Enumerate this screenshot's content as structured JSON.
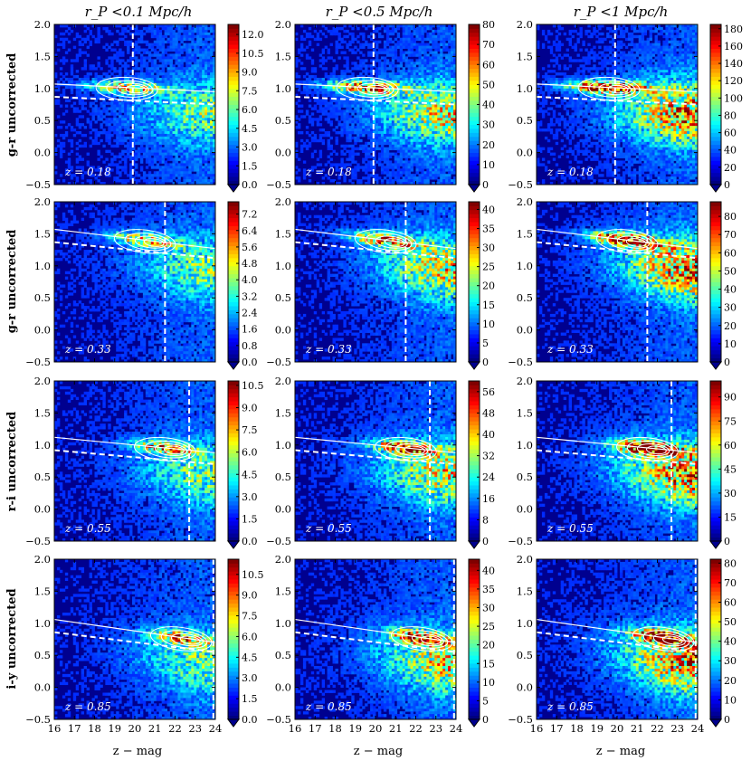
{
  "figure": {
    "column_titles": [
      "r_P <0.1 Mpc/h",
      "r_P <0.5 Mpc/h",
      "r_P <1 Mpc/h"
    ],
    "row_labels": [
      "g-r uncorrected",
      "g-r uncorrected",
      "r-i uncorrected",
      "i-y uncorrected"
    ],
    "xlabel": "z − mag",
    "colors": {
      "low": "#00008f",
      "high": "#800000",
      "contour": "#ffffff",
      "guide": "#ffffff"
    }
  },
  "chart_data": [
    {
      "type": "heatmap",
      "row": 0,
      "col": 0,
      "redshift_label": "z = 0.18",
      "xlim": [
        16,
        24
      ],
      "ylim": [
        -0.5,
        2.0
      ],
      "x_ticks": [
        "16",
        "17",
        "18",
        "19",
        "20",
        "21",
        "22",
        "23",
        "24"
      ],
      "y_ticks": [
        "−0.5",
        "0.0",
        "0.5",
        "1.0",
        "1.5",
        "2.0"
      ],
      "red_sequence_line": [
        [
          16,
          1.07
        ],
        [
          24,
          0.95
        ]
      ],
      "cut_line": [
        [
          16,
          0.87
        ],
        [
          24,
          0.75
        ]
      ],
      "mag_limit": 19.9,
      "colorbar_ticks": [
        "0.0",
        "1.5",
        "3.0",
        "4.5",
        "6.0",
        "7.5",
        "9.0",
        "10.5",
        "12.0"
      ],
      "colorbar_max": 12.8
    },
    {
      "type": "heatmap",
      "row": 0,
      "col": 1,
      "redshift_label": "z = 0.18",
      "xlim": [
        16,
        24
      ],
      "ylim": [
        -0.5,
        2.0
      ],
      "x_ticks": [
        "16",
        "17",
        "18",
        "19",
        "20",
        "21",
        "22",
        "23",
        "24"
      ],
      "y_ticks": [
        "−0.5",
        "0.0",
        "0.5",
        "1.0",
        "1.5",
        "2.0"
      ],
      "red_sequence_line": [
        [
          16,
          1.07
        ],
        [
          24,
          0.95
        ]
      ],
      "cut_line": [
        [
          16,
          0.87
        ],
        [
          24,
          0.75
        ]
      ],
      "mag_limit": 19.9,
      "colorbar_ticks": [
        "0",
        "10",
        "20",
        "30",
        "40",
        "50",
        "60",
        "70",
        "80"
      ],
      "colorbar_max": 80
    },
    {
      "type": "heatmap",
      "row": 0,
      "col": 2,
      "redshift_label": "z = 0.18",
      "xlim": [
        16,
        24
      ],
      "ylim": [
        -0.5,
        2.0
      ],
      "x_ticks": [
        "16",
        "17",
        "18",
        "19",
        "20",
        "21",
        "22",
        "23",
        "24"
      ],
      "y_ticks": [
        "−0.5",
        "0.0",
        "0.5",
        "1.0",
        "1.5",
        "2.0"
      ],
      "red_sequence_line": [
        [
          16,
          1.07
        ],
        [
          24,
          0.95
        ]
      ],
      "cut_line": [
        [
          16,
          0.87
        ],
        [
          24,
          0.75
        ]
      ],
      "mag_limit": 19.9,
      "colorbar_ticks": [
        "0",
        "20",
        "40",
        "60",
        "80",
        "100",
        "120",
        "140",
        "160",
        "180"
      ],
      "colorbar_max": 185
    },
    {
      "type": "heatmap",
      "row": 1,
      "col": 0,
      "redshift_label": "z = 0.33",
      "xlim": [
        16,
        24
      ],
      "ylim": [
        -0.5,
        2.0
      ],
      "x_ticks": [
        "16",
        "17",
        "18",
        "19",
        "20",
        "21",
        "22",
        "23",
        "24"
      ],
      "y_ticks": [
        "−0.5",
        "0.0",
        "0.5",
        "1.0",
        "1.5",
        "2.0"
      ],
      "red_sequence_line": [
        [
          16,
          1.57
        ],
        [
          24,
          1.27
        ]
      ],
      "cut_line": [
        [
          16,
          1.37
        ],
        [
          24,
          1.12
        ]
      ],
      "mag_limit": 21.5,
      "colorbar_ticks": [
        "0.0",
        "0.8",
        "1.6",
        "2.4",
        "3.2",
        "4.0",
        "4.8",
        "5.6",
        "6.4",
        "7.2"
      ],
      "colorbar_max": 7.8
    },
    {
      "type": "heatmap",
      "row": 1,
      "col": 1,
      "redshift_label": "z = 0.33",
      "xlim": [
        16,
        24
      ],
      "ylim": [
        -0.5,
        2.0
      ],
      "x_ticks": [
        "16",
        "17",
        "18",
        "19",
        "20",
        "21",
        "22",
        "23",
        "24"
      ],
      "y_ticks": [
        "−0.5",
        "0.0",
        "0.5",
        "1.0",
        "1.5",
        "2.0"
      ],
      "red_sequence_line": [
        [
          16,
          1.57
        ],
        [
          24,
          1.27
        ]
      ],
      "cut_line": [
        [
          16,
          1.37
        ],
        [
          24,
          1.12
        ]
      ],
      "mag_limit": 21.5,
      "colorbar_ticks": [
        "0",
        "5",
        "10",
        "15",
        "20",
        "25",
        "30",
        "35",
        "40"
      ],
      "colorbar_max": 42
    },
    {
      "type": "heatmap",
      "row": 1,
      "col": 2,
      "redshift_label": "z = 0.33",
      "xlim": [
        16,
        24
      ],
      "ylim": [
        -0.5,
        2.0
      ],
      "x_ticks": [
        "16",
        "17",
        "18",
        "19",
        "20",
        "21",
        "22",
        "23",
        "24"
      ],
      "y_ticks": [
        "−0.5",
        "0.0",
        "0.5",
        "1.0",
        "1.5",
        "2.0"
      ],
      "red_sequence_line": [
        [
          16,
          1.57
        ],
        [
          24,
          1.27
        ]
      ],
      "cut_line": [
        [
          16,
          1.37
        ],
        [
          24,
          1.12
        ]
      ],
      "mag_limit": 21.5,
      "colorbar_ticks": [
        "0",
        "10",
        "20",
        "30",
        "40",
        "50",
        "60",
        "70",
        "80"
      ],
      "colorbar_max": 88
    },
    {
      "type": "heatmap",
      "row": 2,
      "col": 0,
      "redshift_label": "z = 0.55",
      "xlim": [
        16,
        24
      ],
      "ylim": [
        -0.5,
        2.0
      ],
      "x_ticks": [
        "16",
        "17",
        "18",
        "19",
        "20",
        "21",
        "22",
        "23",
        "24"
      ],
      "y_ticks": [
        "−0.5",
        "0.0",
        "0.5",
        "1.0",
        "1.5",
        "2.0"
      ],
      "red_sequence_line": [
        [
          16,
          1.12
        ],
        [
          24,
          0.88
        ]
      ],
      "cut_line": [
        [
          16,
          0.92
        ],
        [
          24,
          0.7
        ]
      ],
      "mag_limit": 22.7,
      "colorbar_ticks": [
        "0.0",
        "1.5",
        "3.0",
        "4.5",
        "6.0",
        "7.5",
        "9.0",
        "10.5"
      ],
      "colorbar_max": 10.8
    },
    {
      "type": "heatmap",
      "row": 2,
      "col": 1,
      "redshift_label": "z = 0.55",
      "xlim": [
        16,
        24
      ],
      "ylim": [
        -0.5,
        2.0
      ],
      "x_ticks": [
        "16",
        "17",
        "18",
        "19",
        "20",
        "21",
        "22",
        "23",
        "24"
      ],
      "y_ticks": [
        "−0.5",
        "0.0",
        "0.5",
        "1.0",
        "1.5",
        "2.0"
      ],
      "red_sequence_line": [
        [
          16,
          1.12
        ],
        [
          24,
          0.88
        ]
      ],
      "cut_line": [
        [
          16,
          0.92
        ],
        [
          24,
          0.7
        ]
      ],
      "mag_limit": 22.7,
      "colorbar_ticks": [
        "0",
        "8",
        "16",
        "24",
        "32",
        "40",
        "48",
        "56"
      ],
      "colorbar_max": 60
    },
    {
      "type": "heatmap",
      "row": 2,
      "col": 2,
      "redshift_label": "z = 0.55",
      "xlim": [
        16,
        24
      ],
      "ylim": [
        -0.5,
        2.0
      ],
      "x_ticks": [
        "16",
        "17",
        "18",
        "19",
        "20",
        "21",
        "22",
        "23",
        "24"
      ],
      "y_ticks": [
        "−0.5",
        "0.0",
        "0.5",
        "1.0",
        "1.5",
        "2.0"
      ],
      "red_sequence_line": [
        [
          16,
          1.12
        ],
        [
          24,
          0.88
        ]
      ],
      "cut_line": [
        [
          16,
          0.92
        ],
        [
          24,
          0.7
        ]
      ],
      "mag_limit": 22.7,
      "colorbar_ticks": [
        "0",
        "15",
        "30",
        "45",
        "60",
        "75",
        "90"
      ],
      "colorbar_max": 100
    },
    {
      "type": "heatmap",
      "row": 3,
      "col": 0,
      "redshift_label": "z = 0.85",
      "xlim": [
        16,
        24
      ],
      "ylim": [
        -0.5,
        2.0
      ],
      "x_ticks": [
        "16",
        "17",
        "18",
        "19",
        "20",
        "21",
        "22",
        "23",
        "24"
      ],
      "y_ticks": [
        "−0.5",
        "0.0",
        "0.5",
        "1.0",
        "1.5",
        "2.0"
      ],
      "red_sequence_line": [
        [
          16,
          1.06
        ],
        [
          24,
          0.7
        ]
      ],
      "cut_line": [
        [
          16,
          0.86
        ],
        [
          24,
          0.55
        ]
      ],
      "mag_limit": 23.9,
      "colorbar_ticks": [
        "0.0",
        "1.5",
        "3.0",
        "4.5",
        "6.0",
        "7.5",
        "9.0",
        "10.5"
      ],
      "colorbar_max": 11.6
    },
    {
      "type": "heatmap",
      "row": 3,
      "col": 1,
      "redshift_label": "z = 0.85",
      "xlim": [
        16,
        24
      ],
      "ylim": [
        -0.5,
        2.0
      ],
      "x_ticks": [
        "16",
        "17",
        "18",
        "19",
        "20",
        "21",
        "22",
        "23",
        "24"
      ],
      "y_ticks": [
        "−0.5",
        "0.0",
        "0.5",
        "1.0",
        "1.5",
        "2.0"
      ],
      "red_sequence_line": [
        [
          16,
          1.06
        ],
        [
          24,
          0.7
        ]
      ],
      "cut_line": [
        [
          16,
          0.86
        ],
        [
          24,
          0.55
        ]
      ],
      "mag_limit": 23.9,
      "colorbar_ticks": [
        "0",
        "5",
        "10",
        "15",
        "20",
        "25",
        "30",
        "35",
        "40"
      ],
      "colorbar_max": 43
    },
    {
      "type": "heatmap",
      "row": 3,
      "col": 2,
      "redshift_label": "z = 0.85",
      "xlim": [
        16,
        24
      ],
      "ylim": [
        -0.5,
        2.0
      ],
      "x_ticks": [
        "16",
        "17",
        "18",
        "19",
        "20",
        "21",
        "22",
        "23",
        "24"
      ],
      "y_ticks": [
        "−0.5",
        "0.0",
        "0.5",
        "1.0",
        "1.5",
        "2.0"
      ],
      "red_sequence_line": [
        [
          16,
          1.06
        ],
        [
          24,
          0.7
        ]
      ],
      "cut_line": [
        [
          16,
          0.86
        ],
        [
          24,
          0.55
        ]
      ],
      "mag_limit": 23.9,
      "colorbar_ticks": [
        "0",
        "10",
        "20",
        "30",
        "40",
        "50",
        "60",
        "70",
        "80"
      ],
      "colorbar_max": 82
    }
  ]
}
